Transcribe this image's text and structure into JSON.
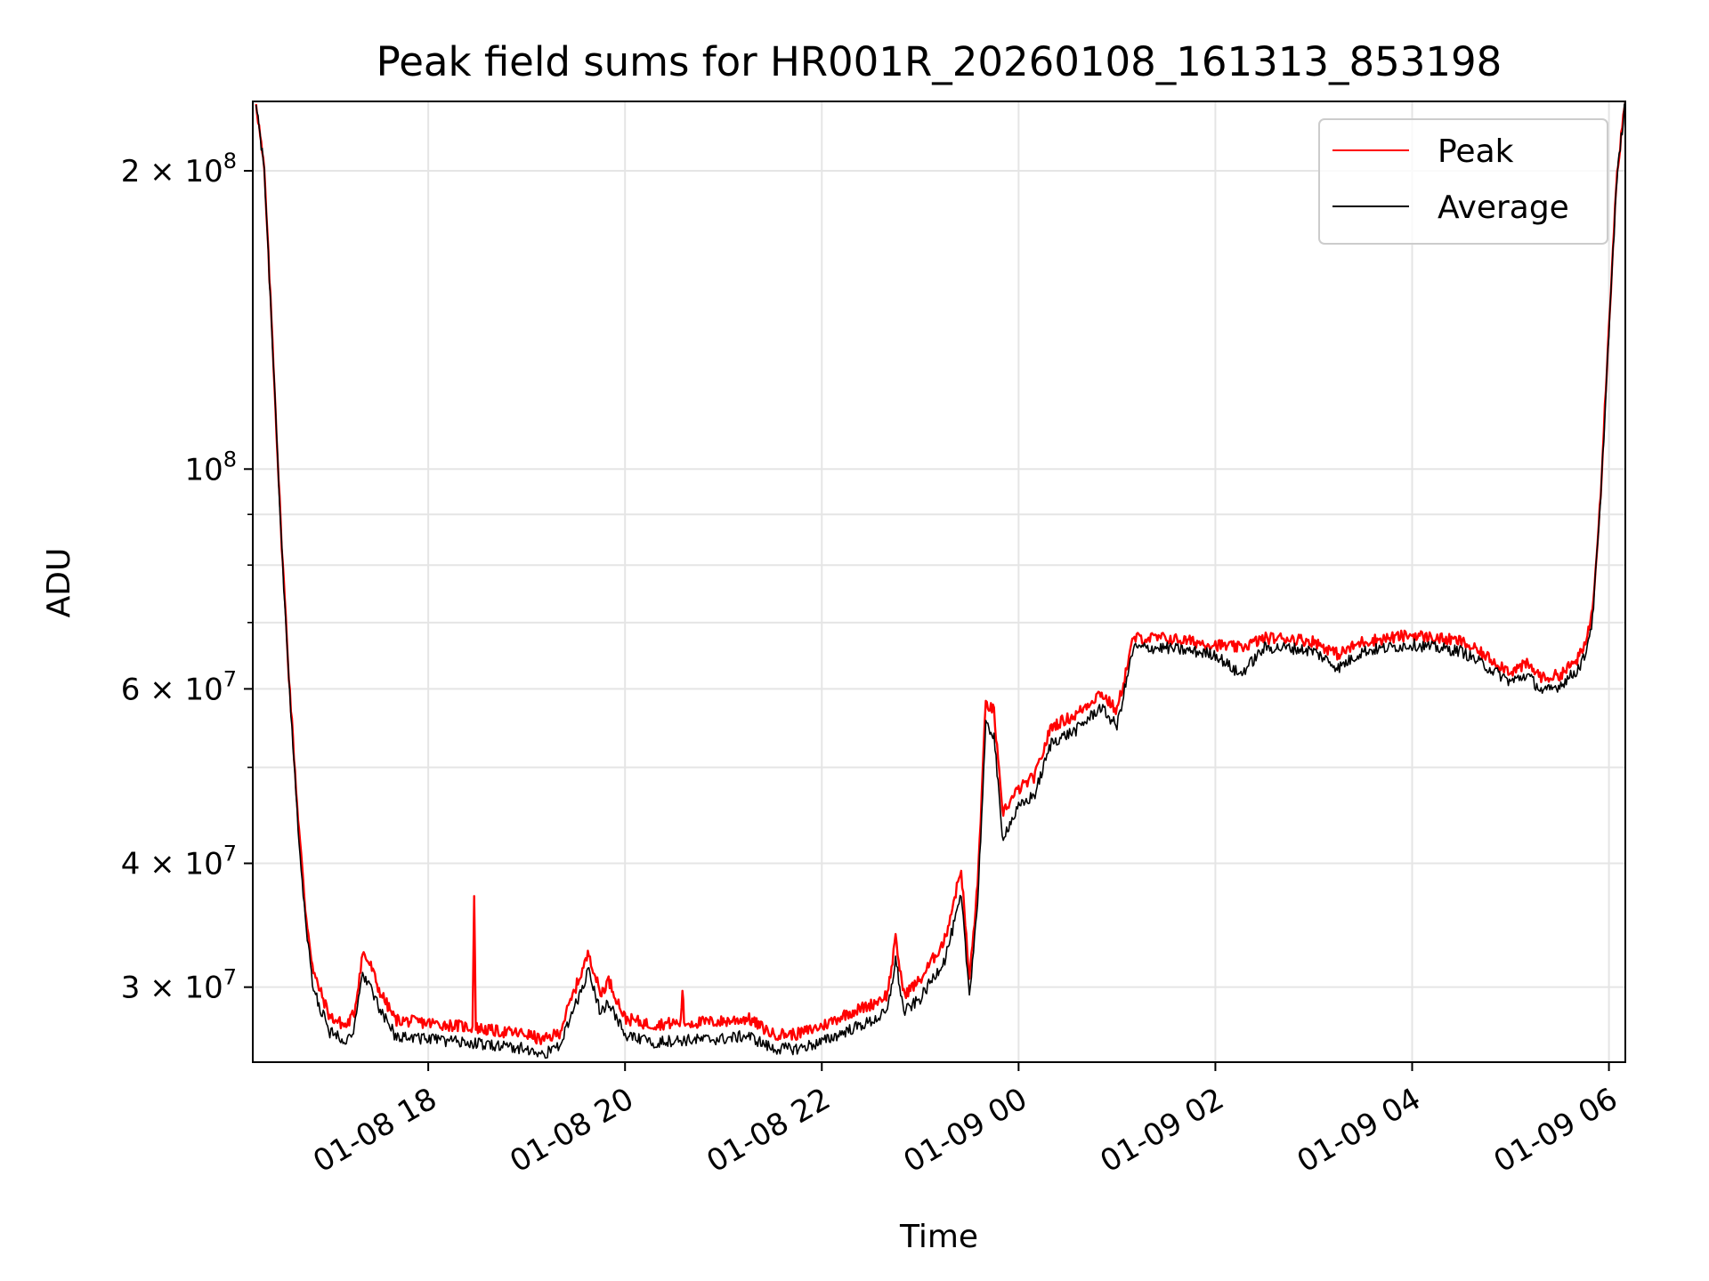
{
  "chart_data": {
    "type": "line",
    "title": "Peak field sums for HR001R_20260108_161313_853198",
    "xlabel": "Time",
    "ylabel": "ADU",
    "y_scale": "log",
    "grid": true,
    "legend": "top-right",
    "xlim": [
      "2026-01-08 16:13",
      "2026-01-09 06:10"
    ],
    "ylim": [
      25200000,
      235000000
    ],
    "x_ticks": [
      "01-08 18",
      "01-08 20",
      "01-08 22",
      "01-09 00",
      "01-09 02",
      "01-09 04",
      "01-09 06"
    ],
    "x_tick_values": [
      "2026-01-08 18:00",
      "2026-01-08 20:00",
      "2026-01-08 22:00",
      "2026-01-09 00:00",
      "2026-01-09 02:00",
      "2026-01-09 04:00",
      "2026-01-09 06:00"
    ],
    "y_ticks": [
      {
        "value": 30000000,
        "mantissa": "3",
        "exp": "7"
      },
      {
        "value": 40000000,
        "mantissa": "4",
        "exp": "7"
      },
      {
        "value": 60000000,
        "mantissa": "6",
        "exp": "7"
      },
      {
        "value": 100000000,
        "mantissa": "",
        "exp": "8"
      },
      {
        "value": 200000000,
        "mantissa": "2",
        "exp": "8"
      }
    ],
    "y_minor_ticks": [
      50000000,
      70000000,
      80000000,
      90000000
    ],
    "series": [
      {
        "name": "Peak",
        "color": "#ff0000",
        "points": [
          [
            "2026-01-08 16:15",
            235000000
          ],
          [
            "2026-01-08 16:20",
            200000000
          ],
          [
            "2026-01-08 16:25",
            135000000
          ],
          [
            "2026-01-08 16:30",
            88000000
          ],
          [
            "2026-01-08 16:35",
            62000000
          ],
          [
            "2026-01-08 16:40",
            46000000
          ],
          [
            "2026-01-08 16:45",
            36000000
          ],
          [
            "2026-01-08 16:50",
            31000000
          ],
          [
            "2026-01-08 17:00",
            28000000
          ],
          [
            "2026-01-08 17:10",
            27400000
          ],
          [
            "2026-01-08 17:15",
            28300000
          ],
          [
            "2026-01-08 17:20",
            32500000
          ],
          [
            "2026-01-08 17:25",
            31500000
          ],
          [
            "2026-01-08 17:30",
            29800000
          ],
          [
            "2026-01-08 17:40",
            27800000
          ],
          [
            "2026-01-08 18:00",
            27600000
          ],
          [
            "2026-01-08 18:20",
            27400000
          ],
          [
            "2026-01-08 18:27",
            27300000
          ],
          [
            "2026-01-08 18:28",
            37500000
          ],
          [
            "2026-01-08 18:29",
            27300000
          ],
          [
            "2026-01-08 18:40",
            27100000
          ],
          [
            "2026-01-08 19:00",
            26900000
          ],
          [
            "2026-01-08 19:10",
            26500000
          ],
          [
            "2026-01-08 19:20",
            27000000
          ],
          [
            "2026-01-08 19:30",
            30000000
          ],
          [
            "2026-01-08 19:38",
            32500000
          ],
          [
            "2026-01-08 19:45",
            29500000
          ],
          [
            "2026-01-08 19:50",
            30500000
          ],
          [
            "2026-01-08 20:00",
            27900000
          ],
          [
            "2026-01-08 20:15",
            27500000
          ],
          [
            "2026-01-08 20:30",
            27600000
          ],
          [
            "2026-01-08 20:34",
            27600000
          ],
          [
            "2026-01-08 20:35",
            30000000
          ],
          [
            "2026-01-08 20:36",
            27600000
          ],
          [
            "2026-01-08 21:00",
            27700000
          ],
          [
            "2026-01-08 21:15",
            27900000
          ],
          [
            "2026-01-08 21:30",
            26900000
          ],
          [
            "2026-01-08 21:45",
            26900000
          ],
          [
            "2026-01-08 22:00",
            27400000
          ],
          [
            "2026-01-08 22:15",
            28200000
          ],
          [
            "2026-01-08 22:30",
            28800000
          ],
          [
            "2026-01-08 22:40",
            29500000
          ],
          [
            "2026-01-08 22:45",
            33500000
          ],
          [
            "2026-01-08 22:50",
            29500000
          ],
          [
            "2026-01-08 23:00",
            30500000
          ],
          [
            "2026-01-08 23:15",
            33500000
          ],
          [
            "2026-01-08 23:25",
            39500000
          ],
          [
            "2026-01-08 23:30",
            30500000
          ],
          [
            "2026-01-08 23:35",
            38000000
          ],
          [
            "2026-01-08 23:40",
            58000000
          ],
          [
            "2026-01-08 23:45",
            57000000
          ],
          [
            "2026-01-08 23:50",
            45000000
          ],
          [
            "2026-01-09 00:00",
            47500000
          ],
          [
            "2026-01-09 00:10",
            49000000
          ],
          [
            "2026-01-09 00:20",
            55000000
          ],
          [
            "2026-01-09 00:35",
            56500000
          ],
          [
            "2026-01-09 00:50",
            59500000
          ],
          [
            "2026-01-09 01:00",
            57000000
          ],
          [
            "2026-01-09 01:10",
            67500000
          ],
          [
            "2026-01-09 01:30",
            67500000
          ],
          [
            "2026-01-09 01:45",
            67000000
          ],
          [
            "2026-01-09 02:00",
            66500000
          ],
          [
            "2026-01-09 02:15",
            66000000
          ],
          [
            "2026-01-09 02:30",
            67500000
          ],
          [
            "2026-01-09 02:45",
            67500000
          ],
          [
            "2026-01-09 03:00",
            67000000
          ],
          [
            "2026-01-09 03:15",
            65000000
          ],
          [
            "2026-01-09 03:30",
            67000000
          ],
          [
            "2026-01-09 04:00",
            68000000
          ],
          [
            "2026-01-09 04:30",
            67000000
          ],
          [
            "2026-01-09 04:50",
            64000000
          ],
          [
            "2026-01-09 05:00",
            62500000
          ],
          [
            "2026-01-09 05:10",
            63500000
          ],
          [
            "2026-01-09 05:20",
            61500000
          ],
          [
            "2026-01-09 05:30",
            62000000
          ],
          [
            "2026-01-09 05:40",
            64000000
          ],
          [
            "2026-01-09 05:45",
            66000000
          ],
          [
            "2026-01-09 05:50",
            72000000
          ],
          [
            "2026-01-09 05:55",
            95000000
          ],
          [
            "2026-01-09 06:00",
            140000000
          ],
          [
            "2026-01-09 06:05",
            200000000
          ],
          [
            "2026-01-09 06:10",
            235000000
          ]
        ]
      },
      {
        "name": "Average",
        "color": "#000000",
        "points": [
          [
            "2026-01-08 16:15",
            235000000
          ],
          [
            "2026-01-08 16:20",
            200000000
          ],
          [
            "2026-01-08 16:25",
            134000000
          ],
          [
            "2026-01-08 16:30",
            87000000
          ],
          [
            "2026-01-08 16:35",
            61000000
          ],
          [
            "2026-01-08 16:40",
            45000000
          ],
          [
            "2026-01-08 16:45",
            35000000
          ],
          [
            "2026-01-08 16:50",
            29800000
          ],
          [
            "2026-01-08 17:00",
            27000000
          ],
          [
            "2026-01-08 17:10",
            26600000
          ],
          [
            "2026-01-08 17:15",
            27200000
          ],
          [
            "2026-01-08 17:20",
            31000000
          ],
          [
            "2026-01-08 17:25",
            30000000
          ],
          [
            "2026-01-08 17:30",
            28500000
          ],
          [
            "2026-01-08 17:40",
            26800000
          ],
          [
            "2026-01-08 18:00",
            26600000
          ],
          [
            "2026-01-08 18:20",
            26400000
          ],
          [
            "2026-01-08 18:40",
            26200000
          ],
          [
            "2026-01-08 19:00",
            26000000
          ],
          [
            "2026-01-08 19:10",
            25600000
          ],
          [
            "2026-01-08 19:20",
            26200000
          ],
          [
            "2026-01-08 19:30",
            28800000
          ],
          [
            "2026-01-08 19:38",
            31200000
          ],
          [
            "2026-01-08 19:45",
            28300000
          ],
          [
            "2026-01-08 19:50",
            29000000
          ],
          [
            "2026-01-08 20:00",
            26800000
          ],
          [
            "2026-01-08 20:15",
            26400000
          ],
          [
            "2026-01-08 20:30",
            26500000
          ],
          [
            "2026-01-08 21:00",
            26600000
          ],
          [
            "2026-01-08 21:15",
            26800000
          ],
          [
            "2026-01-08 21:30",
            26000000
          ],
          [
            "2026-01-08 21:45",
            26000000
          ],
          [
            "2026-01-08 22:00",
            26400000
          ],
          [
            "2026-01-08 22:15",
            27100000
          ],
          [
            "2026-01-08 22:30",
            27700000
          ],
          [
            "2026-01-08 22:40",
            28300000
          ],
          [
            "2026-01-08 22:45",
            32000000
          ],
          [
            "2026-01-08 22:50",
            28300000
          ],
          [
            "2026-01-08 23:00",
            29200000
          ],
          [
            "2026-01-08 23:15",
            32000000
          ],
          [
            "2026-01-08 23:25",
            37000000
          ],
          [
            "2026-01-08 23:30",
            29500000
          ],
          [
            "2026-01-08 23:35",
            36500000
          ],
          [
            "2026-01-08 23:40",
            55000000
          ],
          [
            "2026-01-08 23:45",
            54000000
          ],
          [
            "2026-01-08 23:50",
            42500000
          ],
          [
            "2026-01-09 00:00",
            45500000
          ],
          [
            "2026-01-09 00:10",
            47000000
          ],
          [
            "2026-01-09 00:20",
            53000000
          ],
          [
            "2026-01-09 00:35",
            54500000
          ],
          [
            "2026-01-09 00:50",
            57500000
          ],
          [
            "2026-01-09 01:00",
            55000000
          ],
          [
            "2026-01-09 01:10",
            66000000
          ],
          [
            "2026-01-09 01:30",
            66000000
          ],
          [
            "2026-01-09 01:45",
            65500000
          ],
          [
            "2026-01-09 02:00",
            65000000
          ],
          [
            "2026-01-09 02:15",
            62000000
          ],
          [
            "2026-01-09 02:30",
            66000000
          ],
          [
            "2026-01-09 02:45",
            66000000
          ],
          [
            "2026-01-09 03:00",
            65500000
          ],
          [
            "2026-01-09 03:15",
            63000000
          ],
          [
            "2026-01-09 03:30",
            65500000
          ],
          [
            "2026-01-09 04:00",
            66500000
          ],
          [
            "2026-01-09 04:30",
            65500000
          ],
          [
            "2026-01-09 04:50",
            62500000
          ],
          [
            "2026-01-09 05:00",
            61000000
          ],
          [
            "2026-01-09 05:10",
            62000000
          ],
          [
            "2026-01-09 05:20",
            59500000
          ],
          [
            "2026-01-09 05:30",
            60500000
          ],
          [
            "2026-01-09 05:40",
            62500000
          ],
          [
            "2026-01-09 05:45",
            64500000
          ],
          [
            "2026-01-09 05:50",
            70500000
          ],
          [
            "2026-01-09 05:55",
            93000000
          ],
          [
            "2026-01-09 06:00",
            138000000
          ],
          [
            "2026-01-09 06:05",
            198000000
          ],
          [
            "2026-01-09 06:10",
            235000000
          ]
        ]
      }
    ]
  }
}
